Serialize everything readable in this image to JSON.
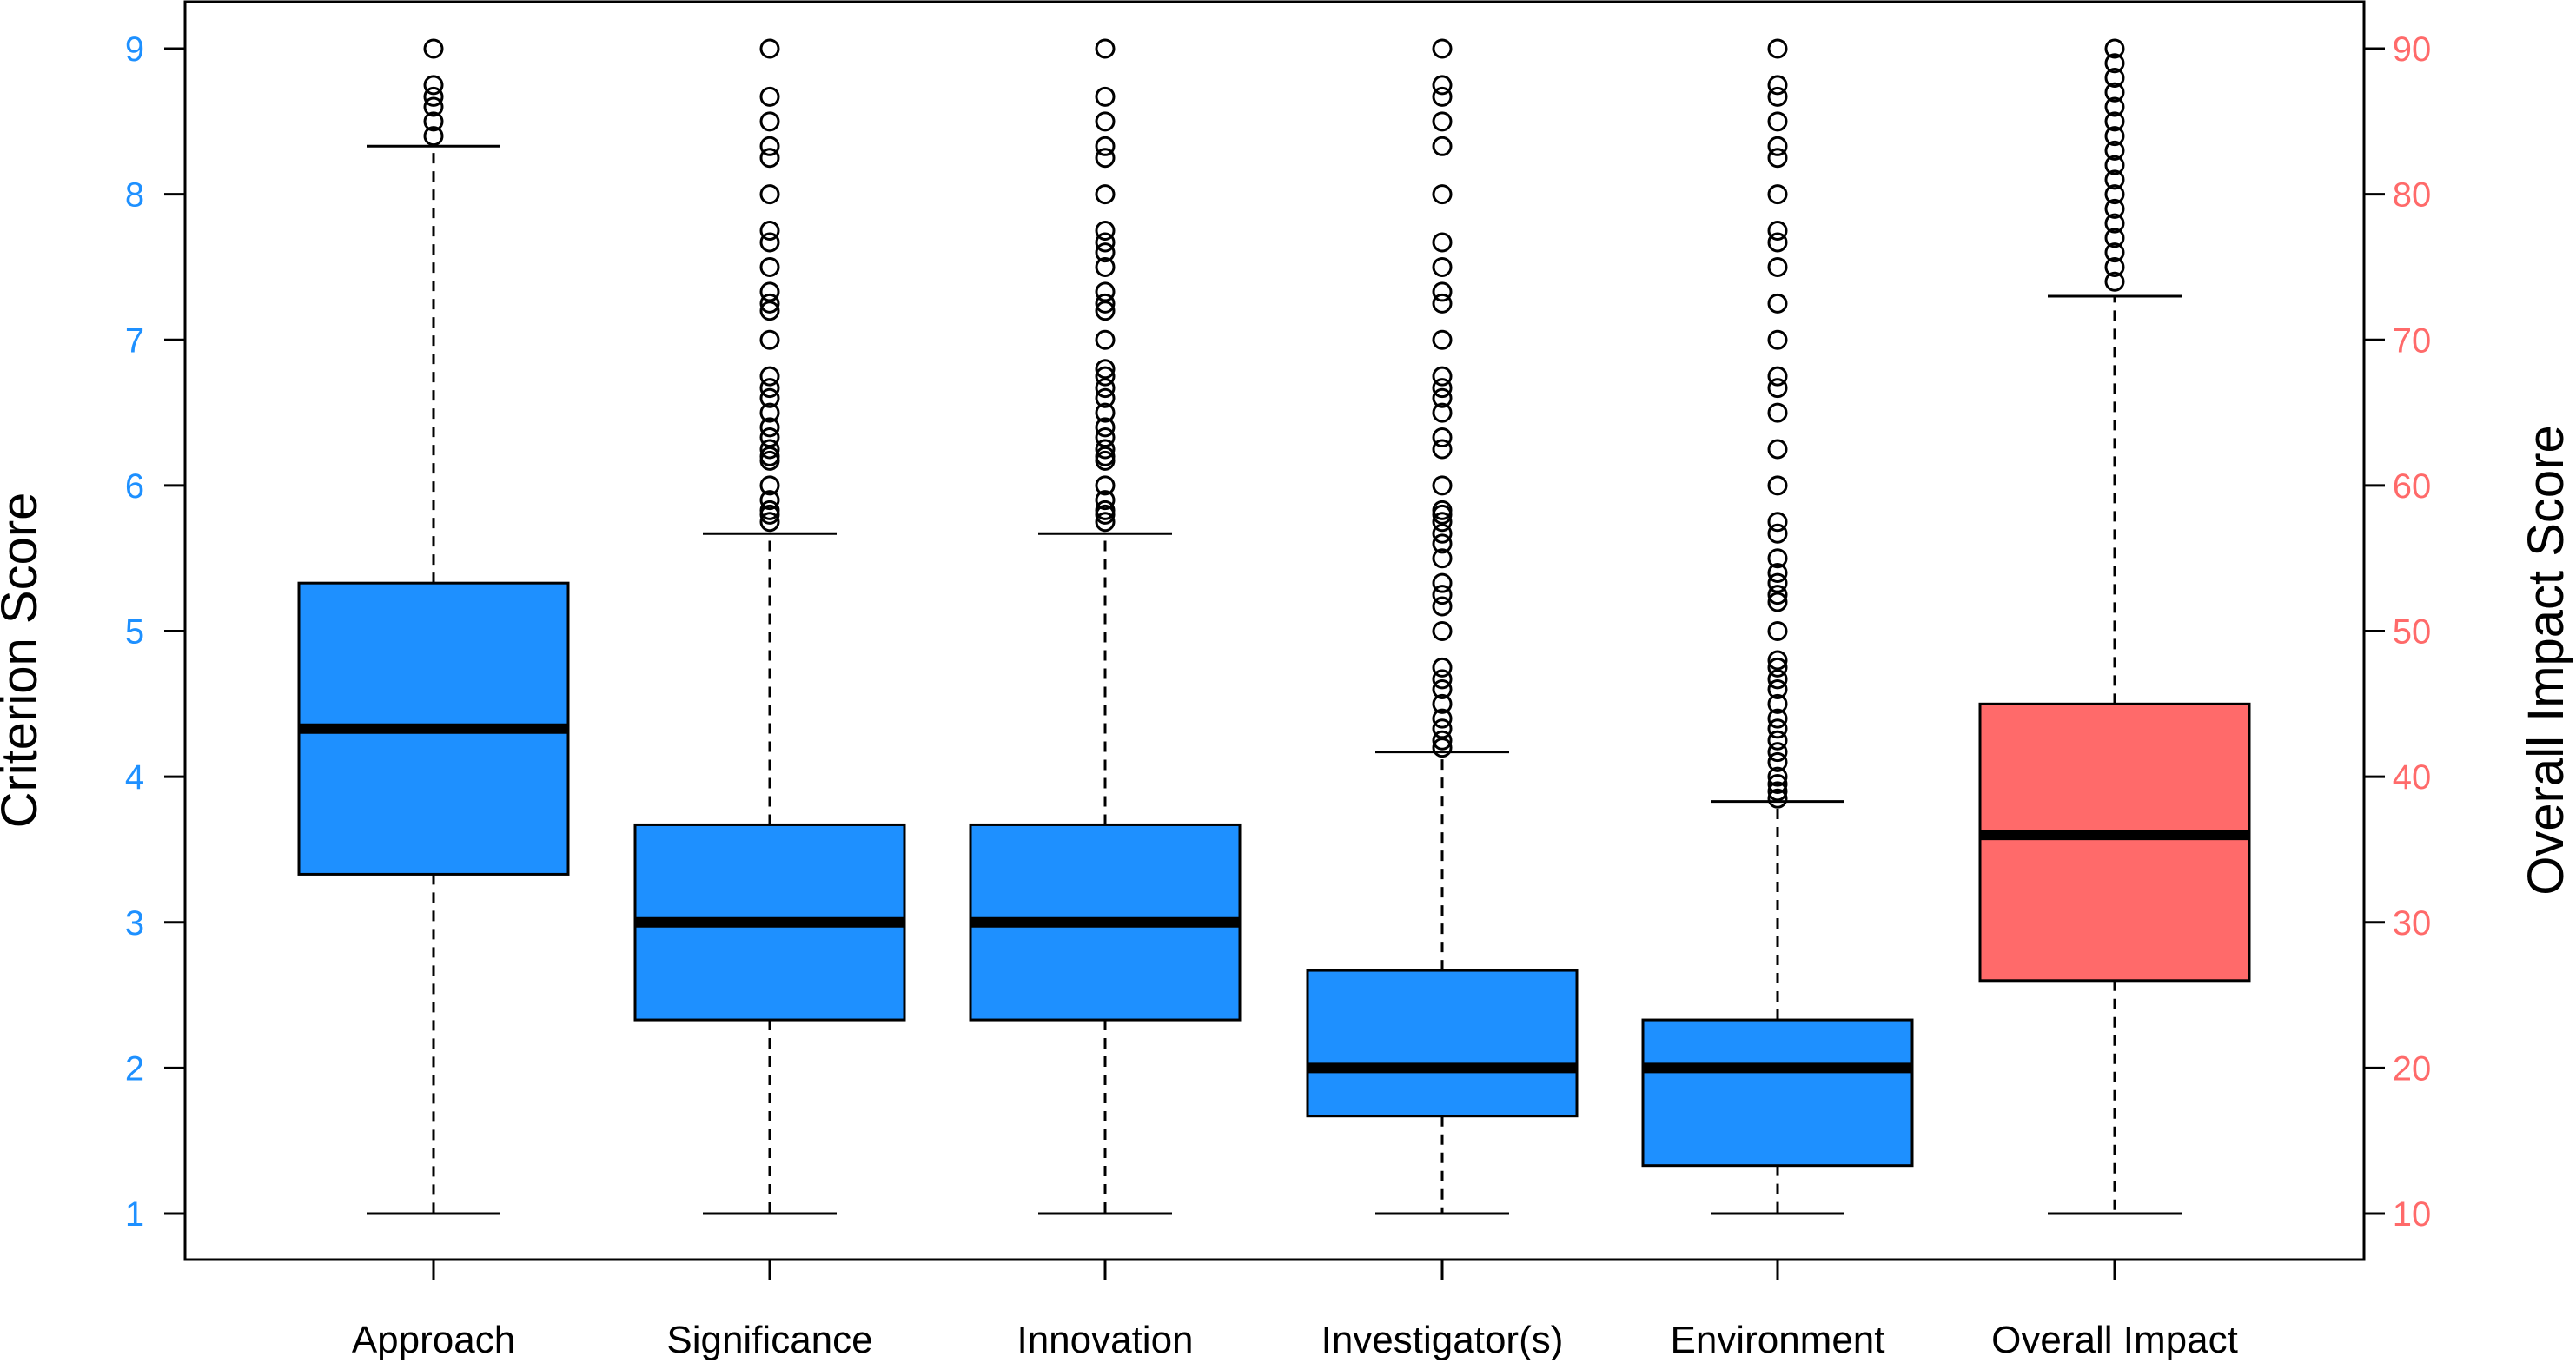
{
  "chart_data": {
    "type": "boxplot",
    "categories": [
      "Approach",
      "Significance",
      "Innovation",
      "Investigator(s)",
      "Environment",
      "Overall Impact"
    ],
    "left_axis": {
      "label": "Criterion Score",
      "ticks": [
        "1",
        "2",
        "3",
        "4",
        "5",
        "6",
        "7",
        "8",
        "9"
      ],
      "range": [
        1,
        9
      ],
      "color": "#1e90ff"
    },
    "right_axis": {
      "label": "Overall Impact Score",
      "ticks": [
        "10",
        "20",
        "30",
        "40",
        "50",
        "60",
        "70",
        "80",
        "90"
      ],
      "range": [
        10,
        90
      ],
      "color": "#ff6a6a"
    },
    "series": [
      {
        "category": "Approach",
        "axis": "left",
        "whisker_low": 1,
        "q1": 3.33,
        "median": 4.33,
        "q3": 5.33,
        "whisker_high": 8.33,
        "outliers": [
          8.4,
          8.5,
          8.6,
          8.67,
          8.75,
          9.0
        ]
      },
      {
        "category": "Significance",
        "axis": "left",
        "whisker_low": 1,
        "q1": 2.33,
        "median": 3.0,
        "q3": 3.67,
        "whisker_high": 5.67,
        "outliers": [
          5.75,
          5.8,
          5.83,
          5.9,
          6.0,
          6.17,
          6.2,
          6.25,
          6.33,
          6.4,
          6.5,
          6.6,
          6.67,
          6.75,
          7.0,
          7.2,
          7.25,
          7.33,
          7.5,
          7.67,
          7.75,
          8.0,
          8.25,
          8.33,
          8.5,
          8.67,
          9.0
        ]
      },
      {
        "category": "Innovation",
        "axis": "left",
        "whisker_low": 1,
        "q1": 2.33,
        "median": 3.0,
        "q3": 3.67,
        "whisker_high": 5.67,
        "outliers": [
          5.75,
          5.8,
          5.83,
          5.9,
          6.0,
          6.17,
          6.2,
          6.25,
          6.33,
          6.4,
          6.5,
          6.6,
          6.67,
          6.75,
          6.8,
          7.0,
          7.2,
          7.25,
          7.33,
          7.5,
          7.6,
          7.67,
          7.75,
          8.0,
          8.25,
          8.33,
          8.5,
          8.67,
          9.0
        ]
      },
      {
        "category": "Investigator(s)",
        "axis": "left",
        "whisker_low": 1,
        "q1": 1.67,
        "median": 2.0,
        "q3": 2.67,
        "whisker_high": 4.17,
        "outliers": [
          4.2,
          4.25,
          4.33,
          4.4,
          4.5,
          4.6,
          4.67,
          4.75,
          5.0,
          5.17,
          5.25,
          5.33,
          5.5,
          5.6,
          5.67,
          5.75,
          5.8,
          5.83,
          6.0,
          6.25,
          6.33,
          6.5,
          6.6,
          6.67,
          6.75,
          7.0,
          7.25,
          7.33,
          7.5,
          7.67,
          8.0,
          8.33,
          8.5,
          8.67,
          8.75,
          9.0
        ]
      },
      {
        "category": "Environment",
        "axis": "left",
        "whisker_low": 1,
        "q1": 1.33,
        "median": 2.0,
        "q3": 2.33,
        "whisker_high": 3.83,
        "outliers": [
          3.85,
          3.9,
          3.95,
          4.0,
          4.1,
          4.17,
          4.25,
          4.33,
          4.4,
          4.5,
          4.6,
          4.67,
          4.75,
          4.8,
          5.0,
          5.2,
          5.25,
          5.33,
          5.4,
          5.5,
          5.67,
          5.75,
          6.0,
          6.25,
          6.5,
          6.67,
          6.75,
          7.0,
          7.25,
          7.5,
          7.67,
          7.75,
          8.0,
          8.25,
          8.33,
          8.5,
          8.67,
          8.75,
          9.0
        ]
      },
      {
        "category": "Overall Impact",
        "axis": "right",
        "whisker_low": 10,
        "q1": 26,
        "median": 36,
        "q3": 45,
        "whisker_high": 73,
        "outliers": [
          74,
          75,
          76,
          77,
          78,
          79,
          80,
          81,
          82,
          83,
          84,
          85,
          86,
          87,
          88,
          89,
          90
        ]
      }
    ],
    "colors": {
      "criterion": "#1e90ff",
      "overall": "#ff6a6a"
    },
    "grid": false,
    "legend": "none"
  }
}
